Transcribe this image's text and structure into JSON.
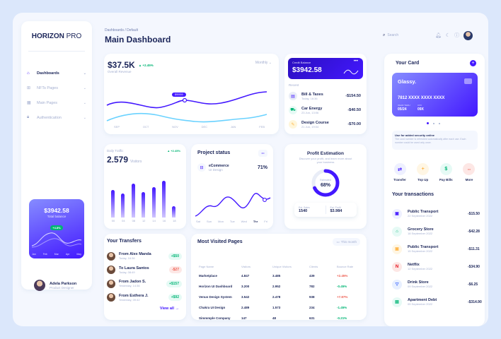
{
  "brand": {
    "bold": "HORIZON",
    "light": " PRO"
  },
  "sidebar": {
    "items": [
      {
        "label": "Dashboards",
        "icon": "home-icon"
      },
      {
        "label": "NFTs Pages",
        "icon": "cart-icon"
      },
      {
        "label": "Main Pages",
        "icon": "grid-icon"
      },
      {
        "label": "Authentication",
        "icon": "lock-icon"
      }
    ],
    "balance": {
      "amount": "$3942.58",
      "label": "Total balance",
      "badge": "+4.8%",
      "months": [
        "Jan",
        "Feb",
        "Mar",
        "Apr",
        "May"
      ]
    },
    "user": {
      "name": "Adela Parkson",
      "role": "Product Designer"
    }
  },
  "header": {
    "breadcrumb": "Dashboards / Default",
    "title": "Main Dashboard",
    "search_placeholder": "Search"
  },
  "overview": {
    "value": "$37.5K",
    "delta": "▲ +2.45%",
    "label": "Overall Revenue",
    "period": "Monthly",
    "tooltip": "$90000",
    "months": [
      "SEP",
      "OCT",
      "NOV",
      "DEC",
      "JAN",
      "FEB"
    ]
  },
  "credit": {
    "title": "Credit Balance",
    "amount": "$3942.58",
    "recent_label": "Recent",
    "items": [
      {
        "name": "Bill & Taxes",
        "date": "Today, 16:36",
        "amount": "-$154.50",
        "icon": "building-icon",
        "bg": "#e9edf7",
        "fg": "#4318ff"
      },
      {
        "name": "Car Energy",
        "date": "23 Jun, 13:06",
        "amount": "-$40.50",
        "icon": "car-icon",
        "bg": "#e6faf5",
        "fg": "#01b574"
      },
      {
        "name": "Design Course",
        "date": "21 Jun, 19:04",
        "amount": "-$70.00",
        "icon": "course-icon",
        "bg": "#fff6da",
        "fg": "#ffb547"
      }
    ]
  },
  "traffic": {
    "label": "Daily Traffic",
    "delta": "▲ +2.45%",
    "value": "2.579",
    "unit": "Visitors",
    "days": [
      "00",
      "04",
      "08",
      "12",
      "14",
      "16",
      "18"
    ]
  },
  "project": {
    "title": "Project status",
    "item_name": "eCommerce",
    "item_sub": "UI Design",
    "percent": "71%",
    "days": [
      "Sat",
      "Sun",
      "Mon",
      "Tue",
      "Wed",
      "Thr",
      "Fri"
    ]
  },
  "profit": {
    "title": "Profit Estimation",
    "subtitle": "Discover your profit, and learn more about your business",
    "center_label": "Estimated",
    "percent": "68%",
    "sales_label": "Est. Sales",
    "sales_value": "1540",
    "profit_label": "Est. Profit",
    "profit_value": "$3.984"
  },
  "transfers": {
    "title": "Your Transfers",
    "view_all": "View all",
    "items": [
      {
        "name": "From Alex Manda",
        "time": "Today, 16:36",
        "amount": "+$50",
        "color": "#01b574",
        "bg": "#e6faf5"
      },
      {
        "name": "To Laura Santos",
        "time": "Today, 08:49",
        "amount": "-$27",
        "color": "#ee5d50",
        "bg": "#fde7e5"
      },
      {
        "name": "From Jadon S.",
        "time": "Yesterday, 14:36",
        "amount": "+$157",
        "color": "#01b574",
        "bg": "#e6faf5"
      },
      {
        "name": "From Esthera J.",
        "time": "Yesterday, 09:42",
        "amount": "+$92",
        "color": "#01b574",
        "bg": "#e6faf5"
      }
    ]
  },
  "visited": {
    "title": "Most Visited Pages",
    "period": "This month",
    "columns": [
      "Page Name",
      "Visitors",
      "Unique Visitors",
      "Clients",
      "Bounce Rate"
    ],
    "rows": [
      {
        "name": "Marketplace",
        "visitors": "4.847",
        "unique": "3.485",
        "clients": "439",
        "bounce": "+2.45%",
        "color": "#ee5d50"
      },
      {
        "name": "Horizon UI Dashboard",
        "visitors": "3.200",
        "unique": "2.952",
        "clients": "782",
        "bounce": "-0.45%",
        "color": "#01b574"
      },
      {
        "name": "Venus Design System",
        "visitors": "3.542",
        "unique": "2.478",
        "clients": "938",
        "bounce": "+7.87%",
        "color": "#ee5d50"
      },
      {
        "name": "Chakra UI Design",
        "visitors": "2.489",
        "unique": "1.573",
        "clients": "234",
        "bounce": "-1.45%",
        "color": "#01b574"
      },
      {
        "name": "Simmmple Company",
        "visitors": "147",
        "unique": "48",
        "clients": "631",
        "bounce": "-0.21%",
        "color": "#01b574"
      }
    ]
  },
  "your_card": {
    "title": "Your Card",
    "brand": "Glassy.",
    "number": "7812 XXXX XXXX XXXX",
    "valid_label": "VALID THRU",
    "valid": "05/24",
    "cvv_label": "CVV",
    "cvv": "09X",
    "notice_title": "Use for added security online",
    "notice_text": "The card number is refreshed automatically after each use. Each number could be used only once.",
    "actions": [
      {
        "label": "Transfer",
        "icon": "transfer-icon",
        "glyph": "⇄",
        "color": "#4318ff",
        "bg": "#eef0ff"
      },
      {
        "label": "Top Up",
        "icon": "plus-icon",
        "glyph": "+",
        "color": "#ffb547",
        "bg": "#fff6e4"
      },
      {
        "label": "Pay Bills",
        "icon": "dollar-icon",
        "glyph": "$",
        "color": "#01b574",
        "bg": "#e6faf5"
      },
      {
        "label": "More",
        "icon": "more-icon",
        "glyph": "•••",
        "color": "#ee5d50",
        "bg": "#fde7e5"
      }
    ]
  },
  "your_transactions": {
    "title": "Your transactions",
    "items": [
      {
        "name": "Public Transport",
        "date": "22 September 2022",
        "amount": "-$15.50",
        "icon": "bus-icon",
        "glyph": "▣",
        "fg": "#4318ff",
        "bg": "#eef0ff"
      },
      {
        "name": "Grocery Store",
        "date": "18 September 2022",
        "amount": "-$42.28",
        "icon": "store-icon",
        "glyph": "⌂",
        "fg": "#01b574",
        "bg": "#e6faf5"
      },
      {
        "name": "Public Transport",
        "date": "15 September 2022",
        "amount": "-$11.31",
        "icon": "bus-icon",
        "glyph": "▣",
        "fg": "#ffb547",
        "bg": "#fff6e4"
      },
      {
        "name": "Netflix",
        "date": "12 September 2022",
        "amount": "-$34.90",
        "icon": "netflix-icon",
        "glyph": "N",
        "fg": "#e50914",
        "bg": "#fde7e5"
      },
      {
        "name": "Drink Store",
        "date": "09 September 2022",
        "amount": "-$6.25",
        "icon": "drink-icon",
        "glyph": "▽",
        "fg": "#3965ff",
        "bg": "#e8f0ff"
      },
      {
        "name": "Apartment Debt",
        "date": "05 September 2022",
        "amount": "-$314.90",
        "icon": "apartment-icon",
        "glyph": "▤",
        "fg": "#01b574",
        "bg": "#e6faf5"
      }
    ]
  }
}
